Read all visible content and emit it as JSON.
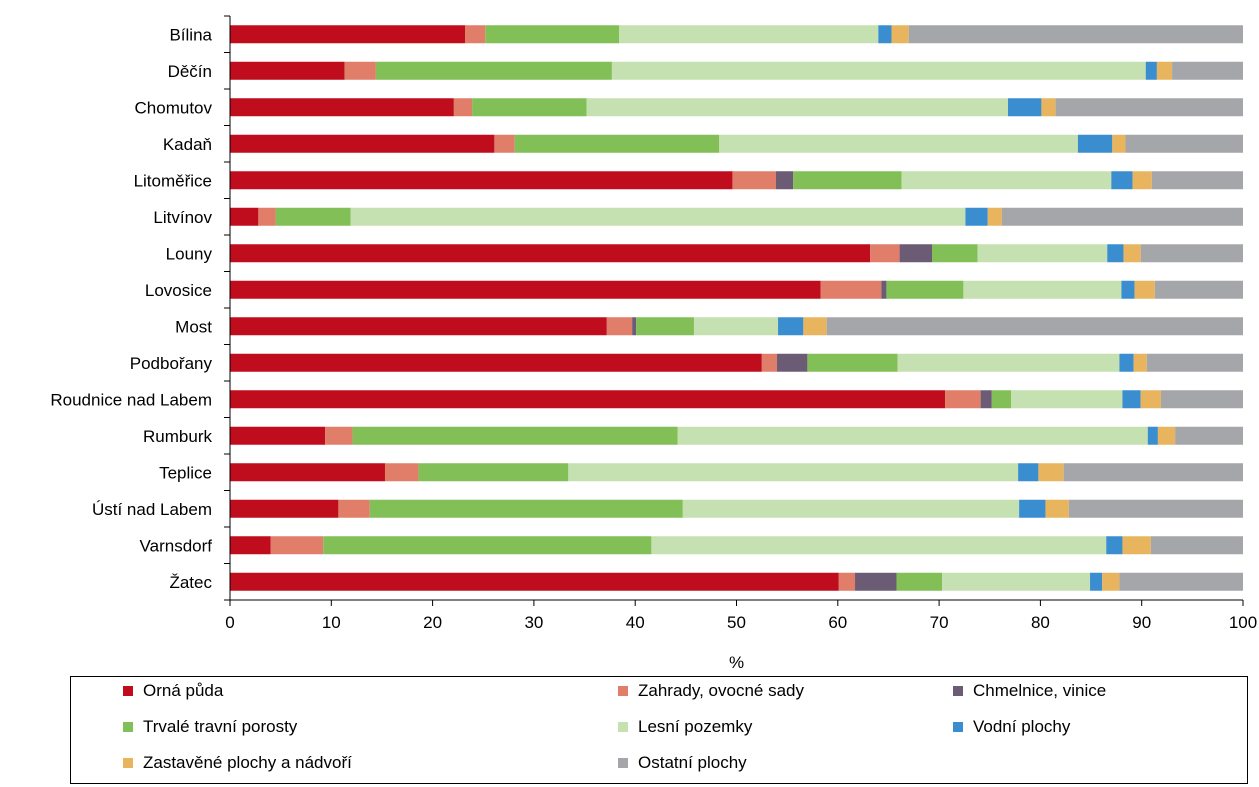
{
  "chart_data": {
    "type": "bar",
    "orientation": "horizontal",
    "stacked": true,
    "title": "",
    "xlabel": "%",
    "ylabel": "",
    "xlim": [
      0,
      100
    ],
    "xticks": [
      0,
      10,
      20,
      30,
      40,
      50,
      60,
      70,
      80,
      90,
      100
    ],
    "grid": false,
    "legend_position": "bottom",
    "categories": [
      "Bílina",
      "Děčín",
      "Chomutov",
      "Kadaň",
      "Litoměřice",
      "Litvínov",
      "Louny",
      "Lovosice",
      "Most",
      "Podbořany",
      "Roudnice nad Labem",
      "Rumburk",
      "Teplice",
      "Ústí nad Labem",
      "Varnsdorf",
      "Žatec"
    ],
    "series": [
      {
        "name": "Orná půda",
        "color": "#C00D1E",
        "values": [
          23.2,
          11.3,
          22.1,
          26.1,
          49.6,
          2.8,
          63.2,
          58.3,
          37.2,
          52.5,
          70.6,
          9.4,
          15.3,
          10.7,
          4.0,
          60.1
        ]
      },
      {
        "name": "Zahrady, ovocné sady",
        "color": "#E07E6A",
        "values": [
          2.0,
          3.1,
          1.8,
          2.0,
          4.3,
          1.7,
          2.9,
          6.0,
          2.5,
          1.5,
          3.5,
          2.7,
          3.3,
          3.1,
          5.2,
          1.6
        ]
      },
      {
        "name": "Chmelnice, vinice",
        "color": "#6B5B74",
        "values": [
          0,
          0,
          0,
          0,
          1.7,
          0,
          3.2,
          0.5,
          0.4,
          3.0,
          1.1,
          0,
          0,
          0,
          0,
          4.1
        ]
      },
      {
        "name": "Trvalé travní porosty",
        "color": "#82BF56",
        "values": [
          13.2,
          23.3,
          11.3,
          20.2,
          10.7,
          7.4,
          4.5,
          7.6,
          5.7,
          8.9,
          1.9,
          32.1,
          14.8,
          30.9,
          32.4,
          4.5
        ]
      },
      {
        "name": "Lesní pozemky",
        "color": "#C6E1B1",
        "values": [
          25.6,
          52.7,
          41.6,
          35.4,
          20.7,
          60.7,
          12.8,
          15.6,
          8.3,
          21.9,
          11.0,
          46.4,
          44.4,
          33.2,
          44.9,
          14.6
        ]
      },
      {
        "name": "Vodní plochy",
        "color": "#3A8ED0",
        "values": [
          1.3,
          1.1,
          3.3,
          3.4,
          2.1,
          2.2,
          1.6,
          1.3,
          2.5,
          1.4,
          1.8,
          1.0,
          2.0,
          2.6,
          1.6,
          1.2
        ]
      },
      {
        "name": "Zastavěné plochy a nádvoří",
        "color": "#E8B55E",
        "values": [
          1.7,
          1.5,
          1.4,
          1.3,
          1.9,
          1.4,
          1.7,
          2.0,
          2.3,
          1.3,
          2.0,
          1.7,
          2.5,
          2.3,
          2.8,
          1.7
        ]
      },
      {
        "name": "Ostatní plochy",
        "color": "#A5A6A9",
        "values": [
          33.0,
          7.0,
          18.5,
          11.6,
          9.0,
          23.8,
          10.1,
          8.7,
          41.1,
          9.5,
          8.1,
          6.7,
          17.7,
          17.2,
          9.1,
          12.2
        ]
      }
    ]
  }
}
